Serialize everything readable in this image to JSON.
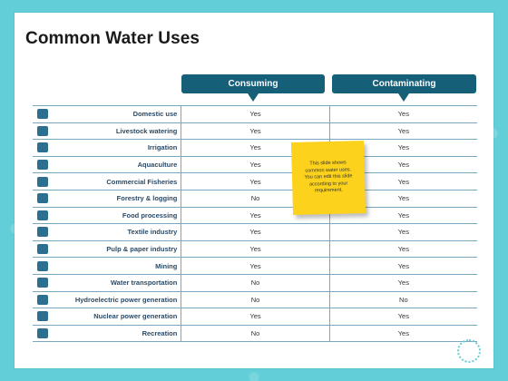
{
  "slide": {
    "title": "Common Water Uses",
    "headers": {
      "consuming": "Consuming",
      "contaminating": "Contaminating"
    },
    "note": "This slide shows common water uses. You can edit this slide according to your requirement.",
    "rows": [
      {
        "icon": "house-icon",
        "label": "Domestic use",
        "consuming": "Yes",
        "contaminating": "Yes"
      },
      {
        "icon": "cow-icon",
        "label": "Livestock watering",
        "consuming": "Yes",
        "contaminating": "Yes"
      },
      {
        "icon": "sprinkler-icon",
        "label": "Irrigation",
        "consuming": "Yes",
        "contaminating": "Yes"
      },
      {
        "icon": "fish-icon",
        "label": "Aquaculture",
        "consuming": "Yes",
        "contaminating": "Yes"
      },
      {
        "icon": "fishing-boat-icon",
        "label": "Commercial Fisheries",
        "consuming": "Yes",
        "contaminating": "Yes"
      },
      {
        "icon": "tree-icon",
        "label": "Forestry & logging",
        "consuming": "No",
        "contaminating": "Yes"
      },
      {
        "icon": "bottle-icon",
        "label": "Food processing",
        "consuming": "Yes",
        "contaminating": "Yes"
      },
      {
        "icon": "shirt-icon",
        "label": "Textile industry",
        "consuming": "Yes",
        "contaminating": "Yes"
      },
      {
        "icon": "paper-icon",
        "label": "Pulp & paper industry",
        "consuming": "Yes",
        "contaminating": "Yes"
      },
      {
        "icon": "mine-icon",
        "label": "Mining",
        "consuming": "Yes",
        "contaminating": "Yes"
      },
      {
        "icon": "ship-icon",
        "label": "Water transportation",
        "consuming": "No",
        "contaminating": "Yes"
      },
      {
        "icon": "dam-icon",
        "label": "Hydroelectric power generation",
        "consuming": "No",
        "contaminating": "No"
      },
      {
        "icon": "nuclear-plant-icon",
        "label": "Nuclear power generation",
        "consuming": "Yes",
        "contaminating": "Yes"
      },
      {
        "icon": "swimmer-icon",
        "label": "Recreation",
        "consuming": "No",
        "contaminating": "Yes"
      }
    ]
  }
}
